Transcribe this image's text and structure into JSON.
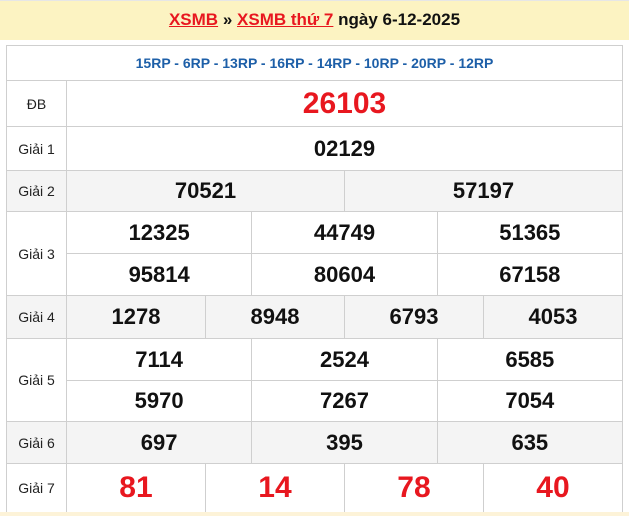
{
  "header": {
    "link1": "XSMB",
    "sep": "»",
    "link2": "XSMB thứ 7",
    "date": "ngày 6-12-2025"
  },
  "codes": "15RP - 6RP - 13RP - 16RP - 14RP - 10RP - 20RP - 12RP",
  "labels": {
    "db": "ĐB",
    "g1": "Giải 1",
    "g2": "Giải 2",
    "g3": "Giải 3",
    "g4": "Giải 4",
    "g5": "Giải 5",
    "g6": "Giải 6",
    "g7": "Giải 7"
  },
  "results": {
    "db": "26103",
    "g1": "02129",
    "g2": [
      "70521",
      "57197"
    ],
    "g3": [
      "12325",
      "44749",
      "51365",
      "95814",
      "80604",
      "67158"
    ],
    "g4": [
      "1278",
      "8948",
      "6793",
      "4053"
    ],
    "g5": [
      "7114",
      "2524",
      "6585",
      "5970",
      "7267",
      "7054"
    ],
    "g6": [
      "697",
      "395",
      "635"
    ],
    "g7": [
      "81",
      "14",
      "78",
      "40"
    ]
  },
  "colors": {
    "accent": "#e8171f",
    "codes": "#1d5fa8",
    "header_bg": "#fcf3c2"
  }
}
